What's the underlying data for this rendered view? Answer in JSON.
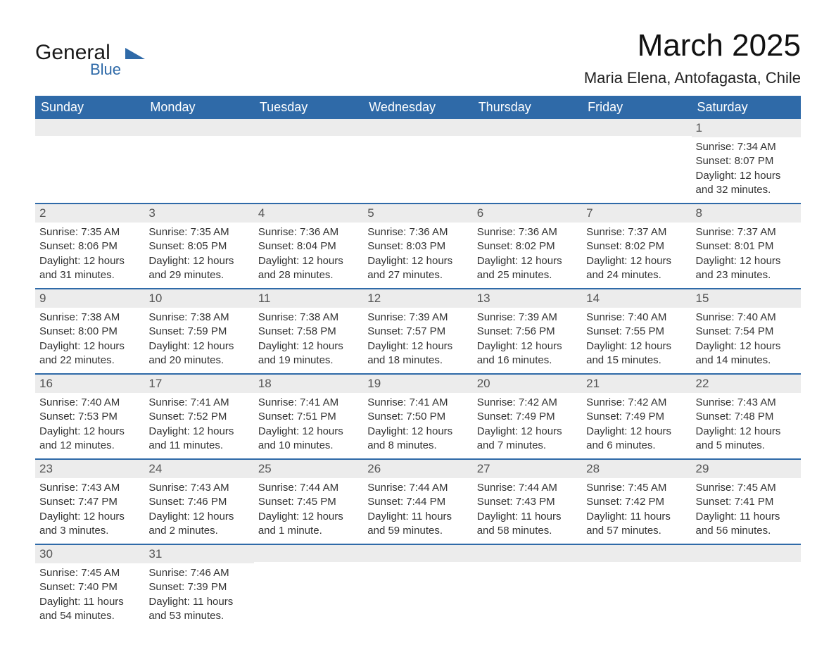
{
  "logo": {
    "main": "General",
    "sub": "Blue"
  },
  "title": "March 2025",
  "location": "Maria Elena, Antofagasta, Chile",
  "colors": {
    "header_bg": "#2f6aa8",
    "header_text": "#ffffff",
    "daynum_bg": "#ececec",
    "row_divider": "#2f6aa8",
    "body_text": "#333333",
    "page_bg": "#ffffff"
  },
  "weekdays": [
    "Sunday",
    "Monday",
    "Tuesday",
    "Wednesday",
    "Thursday",
    "Friday",
    "Saturday"
  ],
  "weeks": [
    [
      null,
      null,
      null,
      null,
      null,
      null,
      {
        "n": "1",
        "sr": "7:34 AM",
        "ss": "8:07 PM",
        "dl": "12 hours and 32 minutes."
      }
    ],
    [
      {
        "n": "2",
        "sr": "7:35 AM",
        "ss": "8:06 PM",
        "dl": "12 hours and 31 minutes."
      },
      {
        "n": "3",
        "sr": "7:35 AM",
        "ss": "8:05 PM",
        "dl": "12 hours and 29 minutes."
      },
      {
        "n": "4",
        "sr": "7:36 AM",
        "ss": "8:04 PM",
        "dl": "12 hours and 28 minutes."
      },
      {
        "n": "5",
        "sr": "7:36 AM",
        "ss": "8:03 PM",
        "dl": "12 hours and 27 minutes."
      },
      {
        "n": "6",
        "sr": "7:36 AM",
        "ss": "8:02 PM",
        "dl": "12 hours and 25 minutes."
      },
      {
        "n": "7",
        "sr": "7:37 AM",
        "ss": "8:02 PM",
        "dl": "12 hours and 24 minutes."
      },
      {
        "n": "8",
        "sr": "7:37 AM",
        "ss": "8:01 PM",
        "dl": "12 hours and 23 minutes."
      }
    ],
    [
      {
        "n": "9",
        "sr": "7:38 AM",
        "ss": "8:00 PM",
        "dl": "12 hours and 22 minutes."
      },
      {
        "n": "10",
        "sr": "7:38 AM",
        "ss": "7:59 PM",
        "dl": "12 hours and 20 minutes."
      },
      {
        "n": "11",
        "sr": "7:38 AM",
        "ss": "7:58 PM",
        "dl": "12 hours and 19 minutes."
      },
      {
        "n": "12",
        "sr": "7:39 AM",
        "ss": "7:57 PM",
        "dl": "12 hours and 18 minutes."
      },
      {
        "n": "13",
        "sr": "7:39 AM",
        "ss": "7:56 PM",
        "dl": "12 hours and 16 minutes."
      },
      {
        "n": "14",
        "sr": "7:40 AM",
        "ss": "7:55 PM",
        "dl": "12 hours and 15 minutes."
      },
      {
        "n": "15",
        "sr": "7:40 AM",
        "ss": "7:54 PM",
        "dl": "12 hours and 14 minutes."
      }
    ],
    [
      {
        "n": "16",
        "sr": "7:40 AM",
        "ss": "7:53 PM",
        "dl": "12 hours and 12 minutes."
      },
      {
        "n": "17",
        "sr": "7:41 AM",
        "ss": "7:52 PM",
        "dl": "12 hours and 11 minutes."
      },
      {
        "n": "18",
        "sr": "7:41 AM",
        "ss": "7:51 PM",
        "dl": "12 hours and 10 minutes."
      },
      {
        "n": "19",
        "sr": "7:41 AM",
        "ss": "7:50 PM",
        "dl": "12 hours and 8 minutes."
      },
      {
        "n": "20",
        "sr": "7:42 AM",
        "ss": "7:49 PM",
        "dl": "12 hours and 7 minutes."
      },
      {
        "n": "21",
        "sr": "7:42 AM",
        "ss": "7:49 PM",
        "dl": "12 hours and 6 minutes."
      },
      {
        "n": "22",
        "sr": "7:43 AM",
        "ss": "7:48 PM",
        "dl": "12 hours and 5 minutes."
      }
    ],
    [
      {
        "n": "23",
        "sr": "7:43 AM",
        "ss": "7:47 PM",
        "dl": "12 hours and 3 minutes."
      },
      {
        "n": "24",
        "sr": "7:43 AM",
        "ss": "7:46 PM",
        "dl": "12 hours and 2 minutes."
      },
      {
        "n": "25",
        "sr": "7:44 AM",
        "ss": "7:45 PM",
        "dl": "12 hours and 1 minute."
      },
      {
        "n": "26",
        "sr": "7:44 AM",
        "ss": "7:44 PM",
        "dl": "11 hours and 59 minutes."
      },
      {
        "n": "27",
        "sr": "7:44 AM",
        "ss": "7:43 PM",
        "dl": "11 hours and 58 minutes."
      },
      {
        "n": "28",
        "sr": "7:45 AM",
        "ss": "7:42 PM",
        "dl": "11 hours and 57 minutes."
      },
      {
        "n": "29",
        "sr": "7:45 AM",
        "ss": "7:41 PM",
        "dl": "11 hours and 56 minutes."
      }
    ],
    [
      {
        "n": "30",
        "sr": "7:45 AM",
        "ss": "7:40 PM",
        "dl": "11 hours and 54 minutes."
      },
      {
        "n": "31",
        "sr": "7:46 AM",
        "ss": "7:39 PM",
        "dl": "11 hours and 53 minutes."
      },
      null,
      null,
      null,
      null,
      null
    ]
  ],
  "labels": {
    "sunrise": "Sunrise:",
    "sunset": "Sunset:",
    "daylight": "Daylight:"
  }
}
